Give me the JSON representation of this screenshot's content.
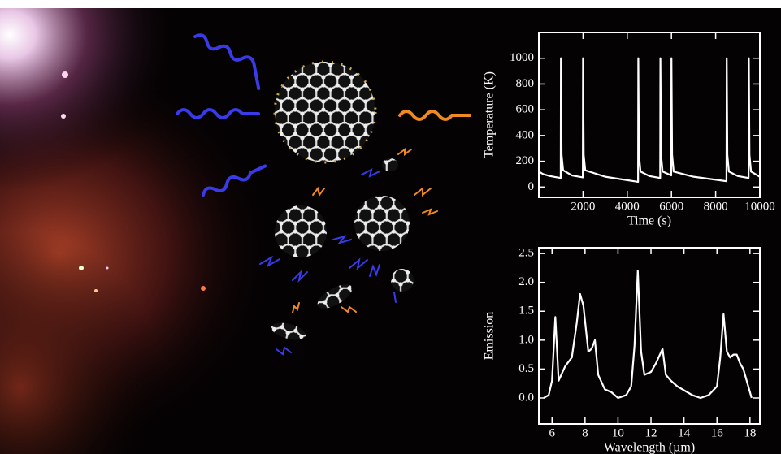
{
  "chart_data": [
    {
      "type": "line",
      "xlabel": "Time (s)",
      "ylabel": "Temperature (K)",
      "x": [
        0,
        200,
        500,
        990,
        1000,
        1030,
        1100,
        1500,
        1990,
        2000,
        2030,
        2100,
        3000,
        4490,
        4500,
        4530,
        4600,
        5000,
        5490,
        5500,
        5530,
        5600,
        5990,
        6000,
        6030,
        6100,
        7000,
        8490,
        8500,
        8530,
        8600,
        9000,
        9490,
        9500,
        9530,
        9600,
        10000
      ],
      "values": [
        120,
        100,
        85,
        70,
        1000,
        250,
        130,
        90,
        75,
        1000,
        250,
        130,
        80,
        40,
        1000,
        250,
        120,
        85,
        70,
        1000,
        250,
        120,
        90,
        1000,
        250,
        120,
        80,
        45,
        1000,
        250,
        120,
        85,
        70,
        1000,
        250,
        120,
        80
      ],
      "color": "#ffffff",
      "xlim": [
        0,
        10000
      ],
      "xticks": [
        2000,
        4000,
        6000,
        8000,
        10000
      ],
      "ylim": [
        -80,
        1200
      ],
      "yticks": [
        0,
        200,
        400,
        600,
        800,
        1000
      ]
    },
    {
      "type": "line",
      "xlabel": "Wavelength (µm)",
      "ylabel": "Emission",
      "x": [
        5.5,
        5.8,
        6.0,
        6.2,
        6.4,
        6.8,
        7.2,
        7.5,
        7.7,
        7.9,
        8.2,
        8.4,
        8.6,
        8.8,
        9.2,
        9.6,
        10.0,
        10.5,
        10.8,
        11.0,
        11.2,
        11.4,
        11.6,
        12.0,
        12.3,
        12.7,
        12.9,
        13.2,
        13.6,
        13.9,
        14.2,
        14.5,
        15.0,
        15.5,
        16.0,
        16.2,
        16.4,
        16.6,
        16.8,
        17.0,
        17.2,
        17.4,
        17.6,
        17.8,
        18.1
      ],
      "values": [
        0.0,
        0.05,
        0.3,
        1.4,
        0.3,
        0.55,
        0.7,
        1.3,
        1.8,
        1.6,
        0.8,
        0.85,
        1.0,
        0.4,
        0.15,
        0.1,
        0.0,
        0.05,
        0.2,
        0.9,
        2.2,
        0.8,
        0.4,
        0.45,
        0.6,
        0.85,
        0.4,
        0.3,
        0.2,
        0.15,
        0.1,
        0.05,
        0.0,
        0.05,
        0.2,
        0.7,
        1.45,
        0.8,
        0.7,
        0.75,
        0.75,
        0.6,
        0.5,
        0.3,
        0.0
      ],
      "color": "#ffffff",
      "xlim": [
        5.2,
        18.6
      ],
      "xticks": [
        6,
        8,
        10,
        12,
        14,
        16,
        18
      ],
      "ylim": [
        -0.45,
        2.6
      ],
      "yticks": [
        {
          "value": 0.0,
          "label": "0.0"
        },
        0.5,
        {
          "value": 1.0,
          "label": "1.0"
        },
        1.5,
        {
          "value": 2.0,
          "label": "2.0"
        },
        2.5
      ]
    }
  ]
}
